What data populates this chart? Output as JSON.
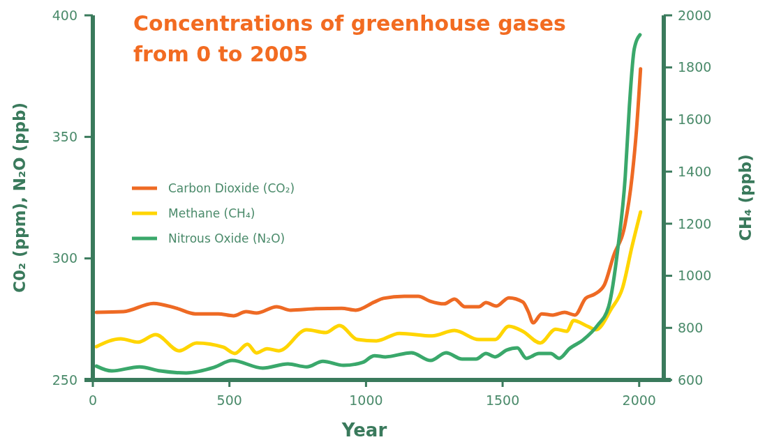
{
  "chart_data": {
    "type": "line",
    "title": "Concentrations of greenhouse gases from 0 to 2005",
    "xlabel": "Year",
    "ylabel": "C0₂ (ppm),  N₂O (ppb)",
    "y2label": "CH₄ (ppb)",
    "xlim": [
      0,
      2090
    ],
    "xticks": [
      0,
      500,
      1000,
      1500,
      2000
    ],
    "ylim": [
      250,
      400
    ],
    "yticks": [
      250,
      300,
      350,
      400
    ],
    "y2lim": [
      600,
      2000
    ],
    "y2ticks": [
      600,
      800,
      1000,
      1200,
      1400,
      1600,
      1800,
      2000
    ],
    "legend": "left",
    "grid": false,
    "series": [
      {
        "name": "Carbon Dioxide (CO₂)",
        "color": "#ee6a24",
        "x": [
          13,
          112,
          222,
          306,
          375,
          459,
          515,
          561,
          599,
          673,
          724,
          816,
          911,
          962,
          1031,
          1064,
          1140,
          1191,
          1235,
          1286,
          1324,
          1362,
          1413,
          1439,
          1477,
          1523,
          1574,
          1594,
          1612,
          1643,
          1684,
          1727,
          1765,
          1804,
          1837,
          1872,
          1906,
          1949,
          1974,
          1990,
          2005
        ],
        "values": [
          277.8,
          278.1,
          281.5,
          279.5,
          277.2,
          277.2,
          276.4,
          278.1,
          277.5,
          280.1,
          278.7,
          279.3,
          279.5,
          278.7,
          282.1,
          283.6,
          284.4,
          284.4,
          282.4,
          281.3,
          283.3,
          280.1,
          280.1,
          281.8,
          280.4,
          283.8,
          282.1,
          278.1,
          273.5,
          277.2,
          276.7,
          277.8,
          276.7,
          283.6,
          285.3,
          289,
          301,
          314.5,
          333.7,
          352.7,
          378
        ]
      },
      {
        "name": "Methane (CH₄)",
        "color": "#ffd500",
        "axis": "y2",
        "x": [
          13,
          102,
          166,
          230,
          316,
          380,
          477,
          520,
          566,
          599,
          638,
          681,
          783,
          852,
          903,
          969,
          1038,
          1122,
          1242,
          1324,
          1413,
          1472,
          1523,
          1574,
          1638,
          1694,
          1735,
          1760,
          1811,
          1842,
          1898,
          1939,
          1974,
          2005
        ],
        "values": [
          728,
          758,
          745,
          774,
          712,
          742,
          726,
          702,
          737,
          704,
          720,
          712,
          793,
          782,
          809,
          755,
          750,
          779,
          769,
          790,
          755,
          755,
          806,
          787,
          742,
          795,
          787,
          828,
          806,
          793,
          873,
          953,
          1114,
          1245
        ]
      },
      {
        "name": "Nitrous Oxide (N₂O)",
        "color": "#3aa86b",
        "x": [
          13,
          69,
          171,
          247,
          342,
          444,
          510,
          622,
          714,
          783,
          842,
          918,
          987,
          1031,
          1071,
          1166,
          1237,
          1293,
          1352,
          1403,
          1439,
          1472,
          1515,
          1554,
          1587,
          1633,
          1676,
          1707,
          1745,
          1796,
          1847,
          1888,
          1923,
          1949,
          1964,
          1982,
          2003
        ],
        "values": [
          255.7,
          253.7,
          255.4,
          253.7,
          252.9,
          255.2,
          258,
          254.9,
          256.6,
          255.4,
          257.7,
          256,
          257.2,
          260,
          259.5,
          261.2,
          258,
          261.2,
          258.6,
          258.6,
          260.9,
          259.5,
          262.3,
          263.2,
          258.9,
          260.9,
          260.9,
          258.9,
          262.9,
          266.6,
          272.4,
          280.1,
          305.1,
          333.7,
          362.4,
          386.2,
          392
        ]
      }
    ]
  }
}
